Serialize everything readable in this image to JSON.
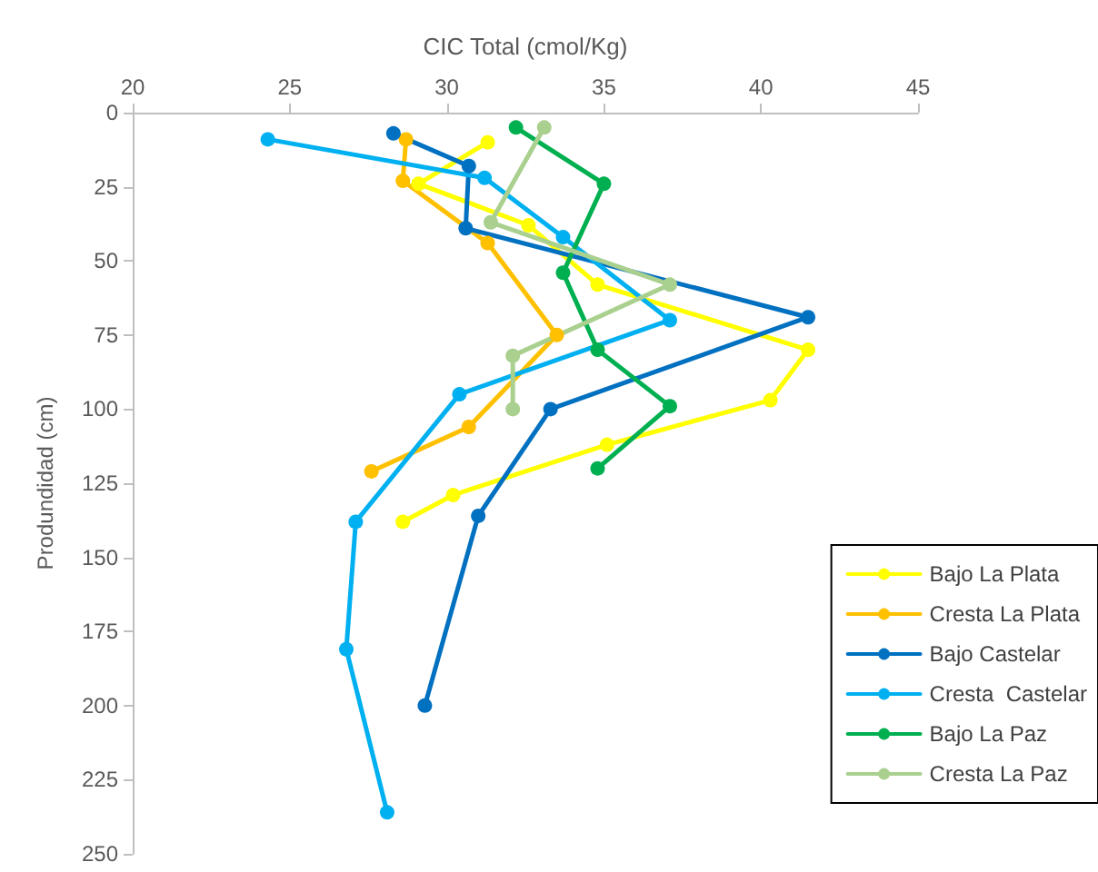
{
  "chart_data": {
    "type": "line",
    "xlabel": "CIC Total (cmol/Kg)",
    "ylabel": "Produndidad (cm)",
    "xlim": [
      20,
      45
    ],
    "xticks": [
      20,
      25,
      30,
      35,
      40,
      45
    ],
    "ylim": [
      250,
      0
    ],
    "yticks": [
      0,
      25,
      50,
      75,
      100,
      125,
      150,
      175,
      200,
      225,
      250
    ],
    "grid": false,
    "legend": "bottom right",
    "marker": "circle",
    "line_style": "solid",
    "series": [
      {
        "name": "Bajo La Plata",
        "color": "#ffff00",
        "x": [
          31.3,
          29.1,
          32.6,
          34.8,
          41.5,
          40.3,
          35.1,
          30.2,
          28.6
        ],
        "values": [
          10,
          24,
          38,
          58,
          80,
          97,
          112,
          129,
          138
        ]
      },
      {
        "name": "Cresta La Plata",
        "color": "#ffc000",
        "x": [
          28.7,
          28.6,
          31.3,
          33.5,
          30.7,
          27.6
        ],
        "values": [
          9,
          23,
          44,
          75,
          106,
          121
        ]
      },
      {
        "name": "Bajo Castelar",
        "color": "#0070c0",
        "x": [
          28.3,
          30.7,
          30.6,
          41.5,
          33.3,
          31.0,
          29.3
        ],
        "values": [
          7,
          18,
          39,
          69,
          100,
          136,
          200
        ]
      },
      {
        "name": "Cresta  Castelar",
        "color": "#00b0f0",
        "x": [
          24.3,
          31.2,
          33.7,
          37.1,
          30.4,
          27.1,
          26.8,
          28.1
        ],
        "values": [
          9,
          22,
          42,
          70,
          95,
          138,
          181,
          236
        ]
      },
      {
        "name": "Bajo La Paz",
        "color": "#00b050",
        "x": [
          32.2,
          35.0,
          33.7,
          34.8,
          37.1,
          34.8
        ],
        "values": [
          5,
          24,
          54,
          80,
          99,
          120
        ]
      },
      {
        "name": "Cresta La Paz",
        "color": "#a9d08e",
        "x": [
          33.1,
          31.4,
          37.1,
          32.1,
          32.1
        ],
        "values": [
          5,
          37,
          58,
          82,
          100
        ]
      }
    ]
  }
}
